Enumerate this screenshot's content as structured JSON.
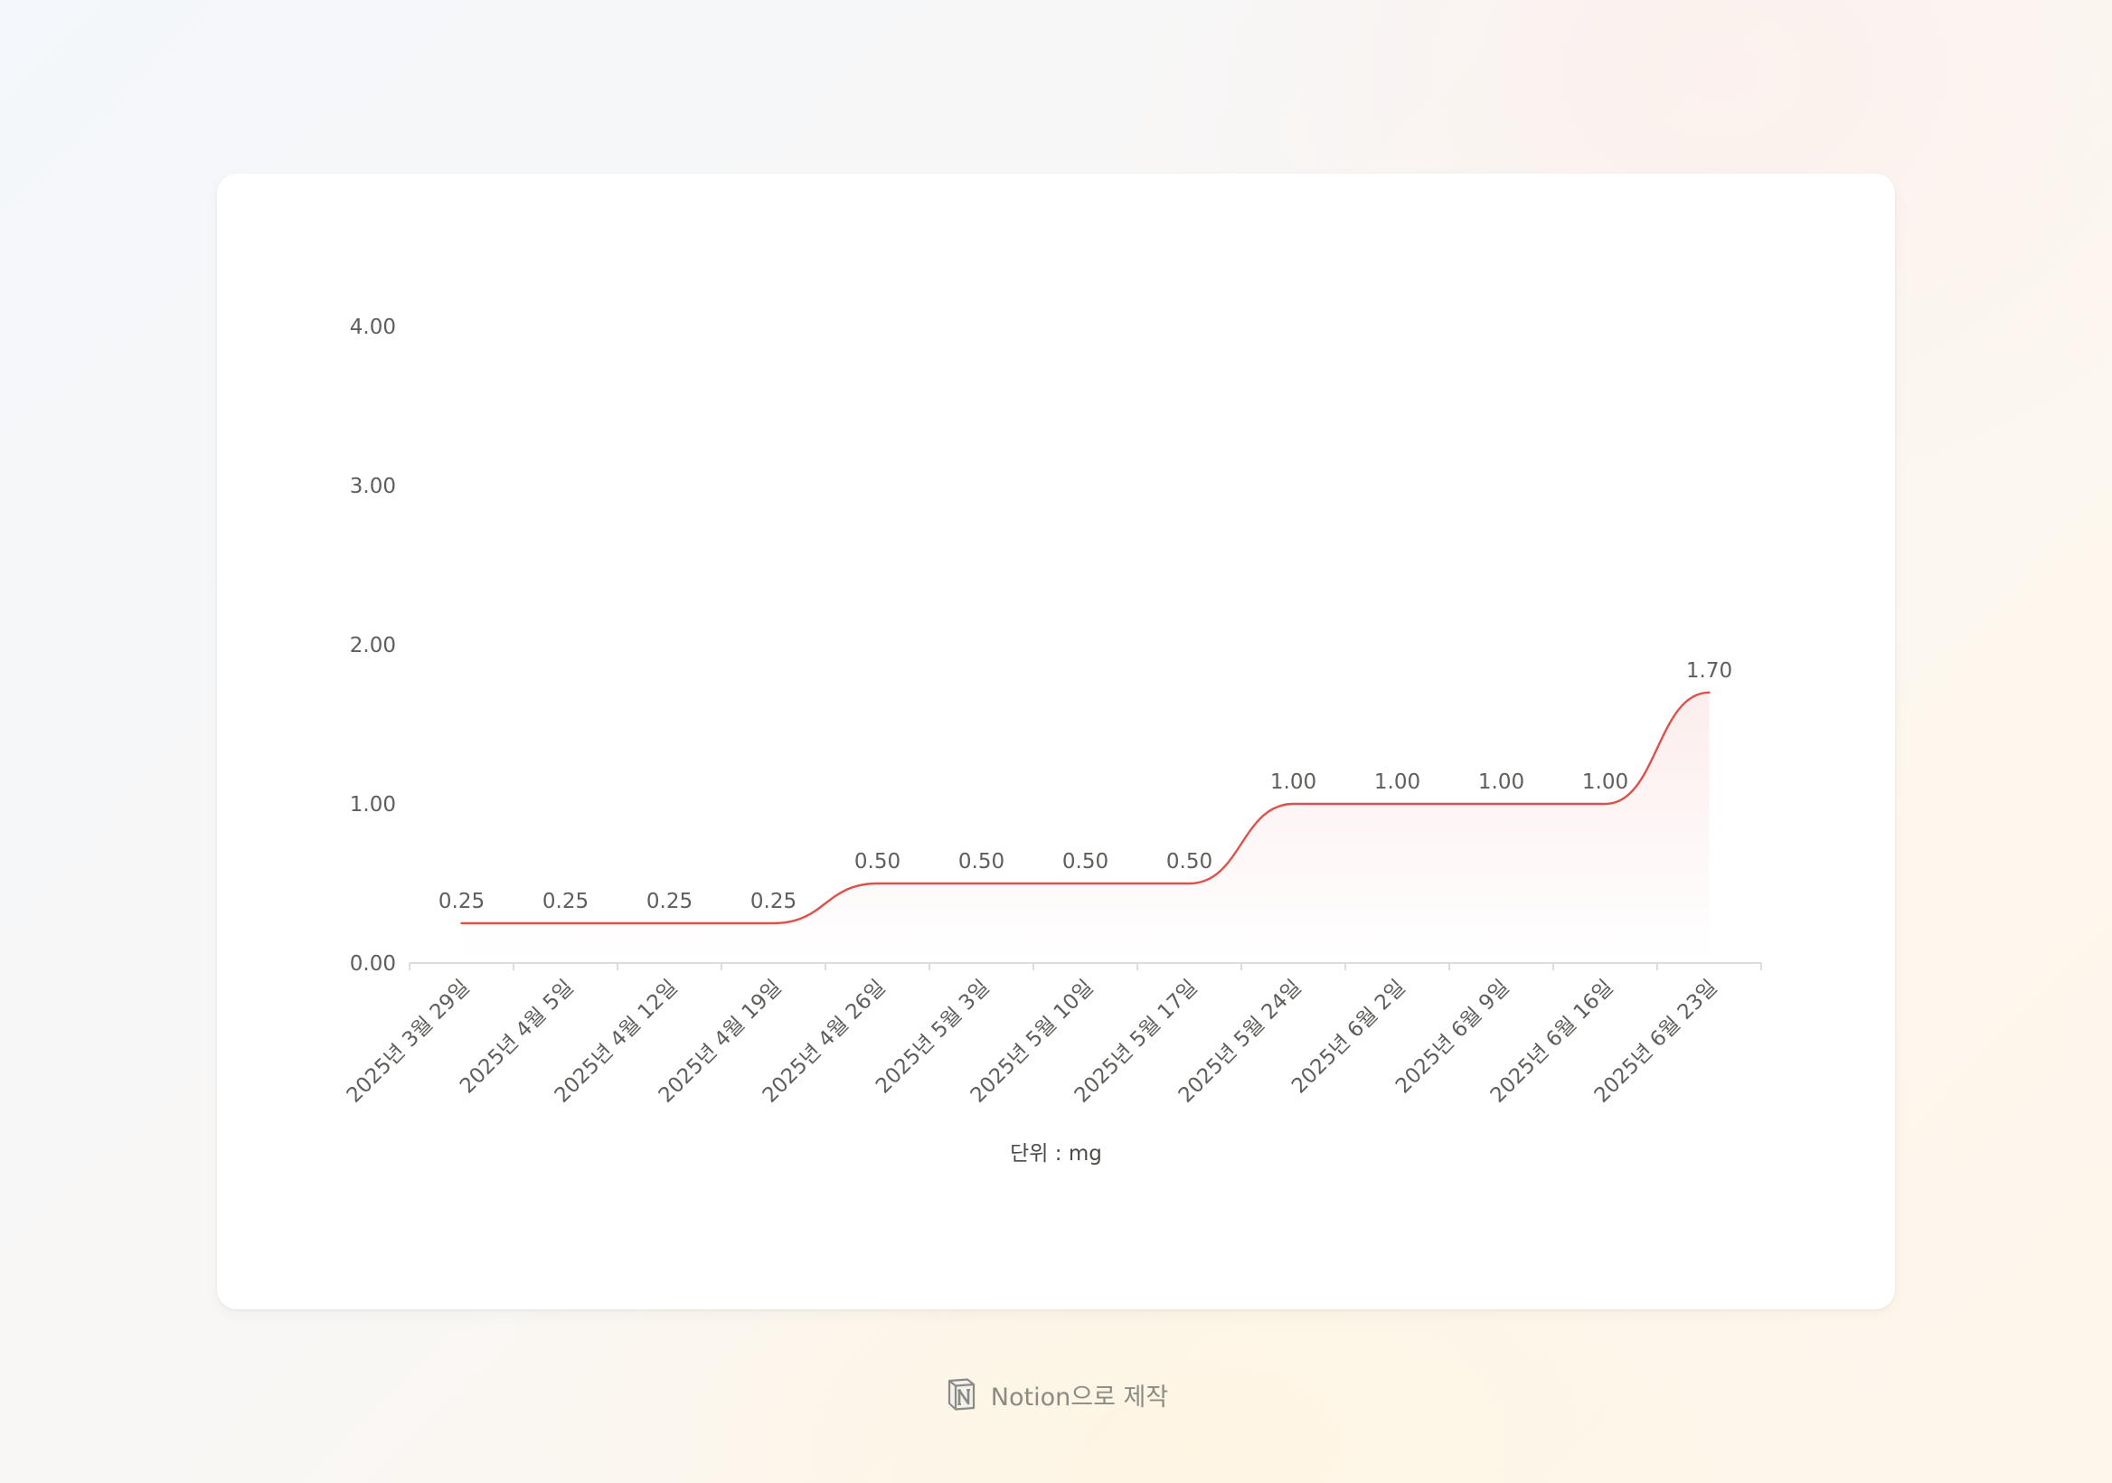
{
  "chart_data": {
    "type": "line",
    "smooth": true,
    "area_fill": true,
    "categories": [
      "2025년 3월 29일",
      "2025년 4월 5일",
      "2025년 4월 12일",
      "2025년 4월 19일",
      "2025년 4월 26일",
      "2025년 5월 3일",
      "2025년 5월 10일",
      "2025년 5월 17일",
      "2025년 5월 24일",
      "2025년 6월 2일",
      "2025년 6월 9일",
      "2025년 6월 16일",
      "2025년 6월 23일"
    ],
    "series": [
      {
        "values": [
          0.25,
          0.25,
          0.25,
          0.25,
          0.5,
          0.5,
          0.5,
          0.5,
          1.0,
          1.0,
          1.0,
          1.0,
          1.7
        ],
        "color": "#e0504a"
      }
    ],
    "data_labels": [
      "0.25",
      "0.25",
      "0.25",
      "0.25",
      "0.50",
      "0.50",
      "0.50",
      "0.50",
      "1.00",
      "1.00",
      "1.00",
      "1.00",
      "1.70"
    ],
    "y_ticks": [
      0,
      1,
      2,
      3,
      4
    ],
    "y_tick_labels": [
      "0.00",
      "1.00",
      "2.00",
      "3.00",
      "4.00"
    ],
    "ylim": [
      0,
      4
    ],
    "xlabel": "단위 : mg",
    "ylabel": "",
    "grid": false,
    "legend": "none"
  },
  "footer": {
    "label": "Notion으로 제작",
    "icon": "notion-logo-icon"
  },
  "colors": {
    "line": "#e0504a",
    "axis": "#dcdcdc",
    "text": "#5f5e5b"
  }
}
